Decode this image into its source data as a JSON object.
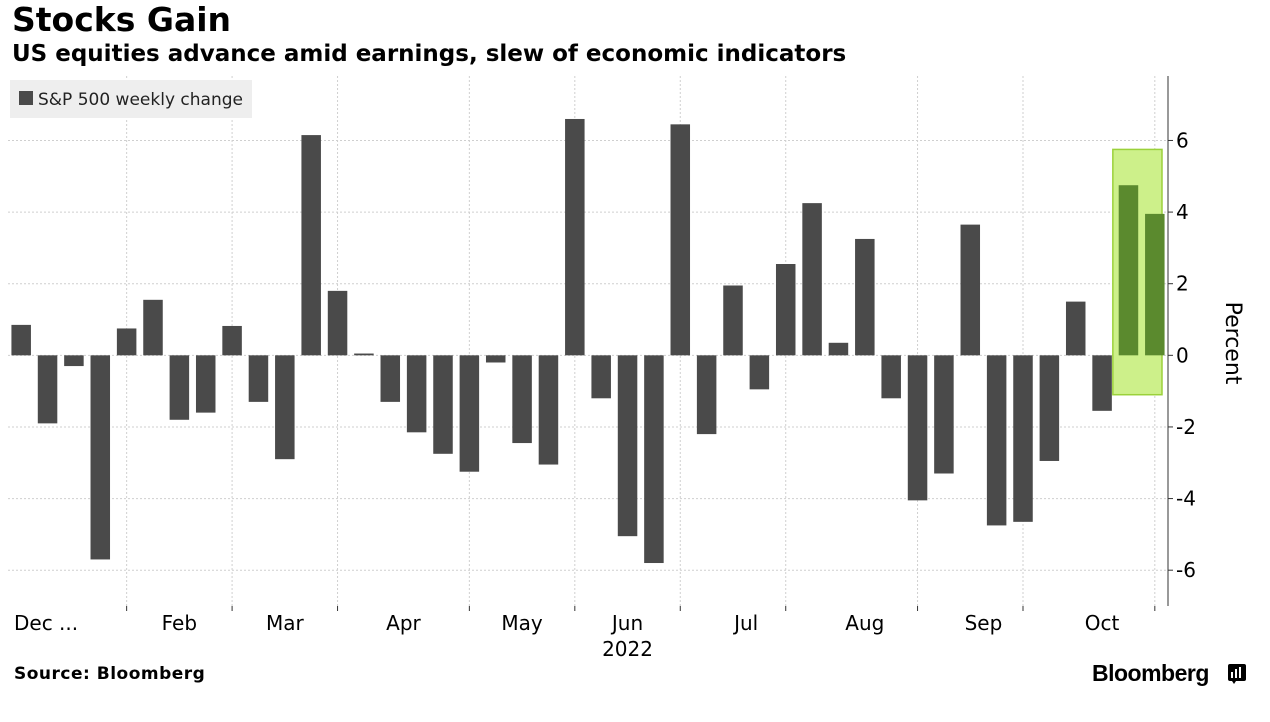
{
  "header": {
    "title": "Stocks Gain",
    "subtitle": "US equities advance amid earnings, slew of economic indicators"
  },
  "footer": {
    "source": "Source: Bloomberg",
    "brand": "Bloomberg"
  },
  "colors": {
    "bar": "#4a4a4a",
    "highlight_fill": "#cdf08a",
    "highlight_border": "#9bd13a",
    "highlight_bar": "#5b8a2e",
    "grid": "#cfcfcf",
    "legend_bg": "#eeeeee"
  },
  "chart_data": {
    "type": "bar",
    "title": "Stocks Gain",
    "subtitle": "US equities advance amid earnings, slew of economic indicators",
    "series": [
      {
        "name": "S&P 500 weekly change",
        "values": [
          0.85,
          -1.9,
          -0.3,
          -5.7,
          0.75,
          1.55,
          -1.8,
          -1.6,
          0.82,
          -1.3,
          -2.9,
          6.15,
          1.8,
          0.05,
          -1.3,
          -2.15,
          -2.75,
          -3.25,
          -0.2,
          -2.45,
          -3.05,
          6.6,
          -1.2,
          -5.05,
          -5.8,
          6.45,
          -2.2,
          1.95,
          -0.95,
          2.55,
          4.25,
          0.35,
          3.25,
          -1.2,
          -4.05,
          -3.3,
          3.65,
          -4.75,
          -4.65,
          -2.95,
          1.5,
          -1.55,
          4.75,
          3.95
        ]
      }
    ],
    "highlight_last": 2,
    "xlabel": "2022",
    "ylabel": "Percent",
    "ylim": [
      -7,
      7.8
    ],
    "yticks": [
      -6,
      -4,
      -2,
      0,
      2,
      4,
      6
    ],
    "month_labels": [
      {
        "label": "Dec ...",
        "index": 0
      },
      {
        "label": "Feb",
        "index": 6
      },
      {
        "label": "Mar",
        "index": 10
      },
      {
        "label": "Apr",
        "index": 14.5
      },
      {
        "label": "May",
        "index": 19
      },
      {
        "label": "Jun",
        "index": 23
      },
      {
        "label": "Jul",
        "index": 27.5
      },
      {
        "label": "Aug",
        "index": 32
      },
      {
        "label": "Sep",
        "index": 36.5
      },
      {
        "label": "Oct",
        "index": 41
      }
    ],
    "gridline_indices": [
      4.5,
      8.5,
      12.5,
      17.5,
      21.5,
      25.5,
      29.5,
      34.5,
      38.5,
      43.5
    ],
    "legend_position": "top-left",
    "grid": true
  }
}
